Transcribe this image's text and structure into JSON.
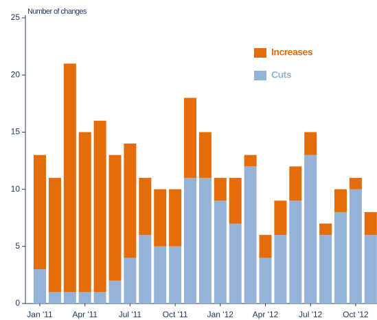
{
  "chart_data": {
    "type": "bar",
    "stacked": true,
    "y_label": "Number of changes",
    "categories": [
      "Jan '11",
      null,
      null,
      "Apr '11",
      null,
      null,
      "Jul '11",
      null,
      null,
      "Oct '11",
      null,
      null,
      "Jan '12",
      null,
      null,
      "Apr '12",
      null,
      null,
      "Jul '12",
      null,
      null,
      "Oct '12",
      null
    ],
    "series": [
      {
        "name": "Increases",
        "color": "#e46c0a",
        "values": [
          10,
          10,
          20,
          14,
          15,
          11,
          10,
          5,
          5,
          5,
          7,
          4,
          2,
          4,
          1,
          2,
          3,
          3,
          2,
          1,
          2,
          1,
          2
        ]
      },
      {
        "name": "Cuts",
        "color": "#95b3d7",
        "values": [
          3,
          1,
          1,
          1,
          1,
          2,
          4,
          6,
          5,
          5,
          11,
          11,
          9,
          7,
          12,
          4,
          6,
          9,
          13,
          6,
          8,
          10,
          6
        ]
      }
    ],
    "ylim": [
      0,
      25
    ],
    "yticks": [
      0,
      5,
      10,
      15,
      20,
      25
    ],
    "legend": "top-right"
  }
}
